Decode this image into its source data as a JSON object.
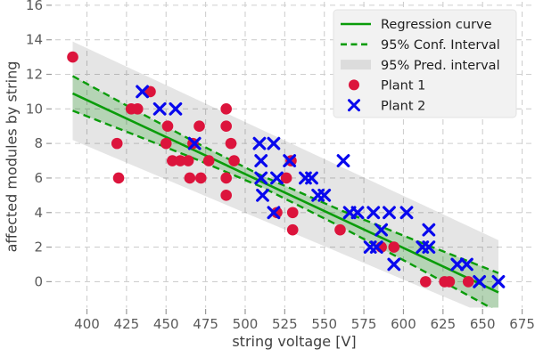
{
  "chart_data": {
    "type": "scatter",
    "title": "",
    "xlabel": "string voltage [V]",
    "ylabel": "affected modules by string",
    "xlim": [
      380,
      682
    ],
    "ylim": [
      -1.5,
      16.2
    ],
    "xticks": [
      400,
      425,
      450,
      475,
      500,
      525,
      550,
      575,
      600,
      625,
      650,
      675
    ],
    "yticks": [
      0,
      2,
      4,
      6,
      8,
      10,
      12,
      14,
      16
    ],
    "grid": true,
    "legend_position": "upper right",
    "colors": {
      "regression": "#0a9c0a",
      "conf_interval": "#0a9c0a",
      "conf_fill": "rgba(13,154,13,0.22)",
      "pred_band": "rgba(0,0,0,0.10)",
      "plant1": "#dc143c",
      "plant2": "#0808ee",
      "grid": "#cfcfcf",
      "tick": "#9a9a9a",
      "tick_label": "#5a5a5a",
      "axis_label": "#3f3f3f",
      "legend_bg": "#f2f2f2",
      "legend_border": "#e3e3e3",
      "legend_text": "#1f1f1f"
    },
    "regression_line": {
      "name": "Regression curve",
      "points": [
        [
          391,
          10.9
        ],
        [
          660,
          -0.62
        ]
      ]
    },
    "conf_interval": {
      "name": "95% Conf. Interval",
      "upper": [
        [
          391,
          11.9
        ],
        [
          430,
          9.95
        ],
        [
          470,
          8.0
        ],
        [
          510,
          6.15
        ],
        [
          560,
          4.15
        ],
        [
          610,
          2.3
        ],
        [
          660,
          0.5
        ]
      ],
      "lower": [
        [
          391,
          9.9
        ],
        [
          430,
          8.5
        ],
        [
          470,
          7.05
        ],
        [
          510,
          5.5
        ],
        [
          560,
          3.2
        ],
        [
          610,
          0.75
        ],
        [
          660,
          -1.75
        ]
      ]
    },
    "pred_interval": {
      "name": "95% Pred. interval",
      "upper": [
        [
          391,
          13.9
        ],
        [
          660,
          2.4
        ]
      ],
      "lower": [
        [
          391,
          8.2
        ],
        [
          660,
          -2.2
        ]
      ]
    },
    "series": [
      {
        "name": "Plant 1",
        "marker": "circle",
        "points": [
          [
            391,
            13
          ],
          [
            440,
            11
          ],
          [
            428,
            10
          ],
          [
            432,
            10
          ],
          [
            488,
            10
          ],
          [
            451,
            9
          ],
          [
            471,
            9
          ],
          [
            488,
            9
          ],
          [
            419,
            8
          ],
          [
            450,
            8
          ],
          [
            467,
            8
          ],
          [
            491,
            8
          ],
          [
            454,
            7
          ],
          [
            459,
            7
          ],
          [
            464,
            7
          ],
          [
            477,
            7
          ],
          [
            493,
            7
          ],
          [
            529,
            7
          ],
          [
            420,
            6
          ],
          [
            465,
            6
          ],
          [
            472,
            6
          ],
          [
            488,
            6
          ],
          [
            526,
            6
          ],
          [
            488,
            5
          ],
          [
            520,
            4
          ],
          [
            530,
            4
          ],
          [
            530,
            3
          ],
          [
            560,
            3
          ],
          [
            586,
            2
          ],
          [
            594,
            2
          ],
          [
            614,
            0
          ],
          [
            626,
            0
          ],
          [
            629,
            0
          ],
          [
            641,
            0
          ]
        ]
      },
      {
        "name": "Plant 2",
        "marker": "x",
        "points": [
          [
            435,
            11
          ],
          [
            446,
            10
          ],
          [
            456,
            10
          ],
          [
            468,
            8
          ],
          [
            509,
            8
          ],
          [
            518,
            8
          ],
          [
            510,
            7
          ],
          [
            528,
            7
          ],
          [
            562,
            7
          ],
          [
            510,
            6
          ],
          [
            520,
            6
          ],
          [
            538,
            6
          ],
          [
            542,
            6
          ],
          [
            511,
            5
          ],
          [
            546,
            5
          ],
          [
            550,
            5
          ],
          [
            518,
            4
          ],
          [
            566,
            4
          ],
          [
            571,
            4
          ],
          [
            581,
            4
          ],
          [
            591,
            4
          ],
          [
            602,
            4
          ],
          [
            586,
            3
          ],
          [
            616,
            3
          ],
          [
            579,
            2
          ],
          [
            583,
            2
          ],
          [
            612,
            2
          ],
          [
            616,
            2
          ],
          [
            594,
            1
          ],
          [
            634,
            1
          ],
          [
            640,
            1
          ],
          [
            648,
            0
          ],
          [
            660,
            0
          ]
        ]
      }
    ],
    "legend": [
      {
        "label": "Regression curve",
        "swatch": "line"
      },
      {
        "label": "95% Conf. Interval",
        "swatch": "dashed"
      },
      {
        "label": "95% Pred. interval",
        "swatch": "band"
      },
      {
        "label": "Plant 1",
        "swatch": "circle"
      },
      {
        "label": "Plant 2",
        "swatch": "x"
      }
    ]
  }
}
